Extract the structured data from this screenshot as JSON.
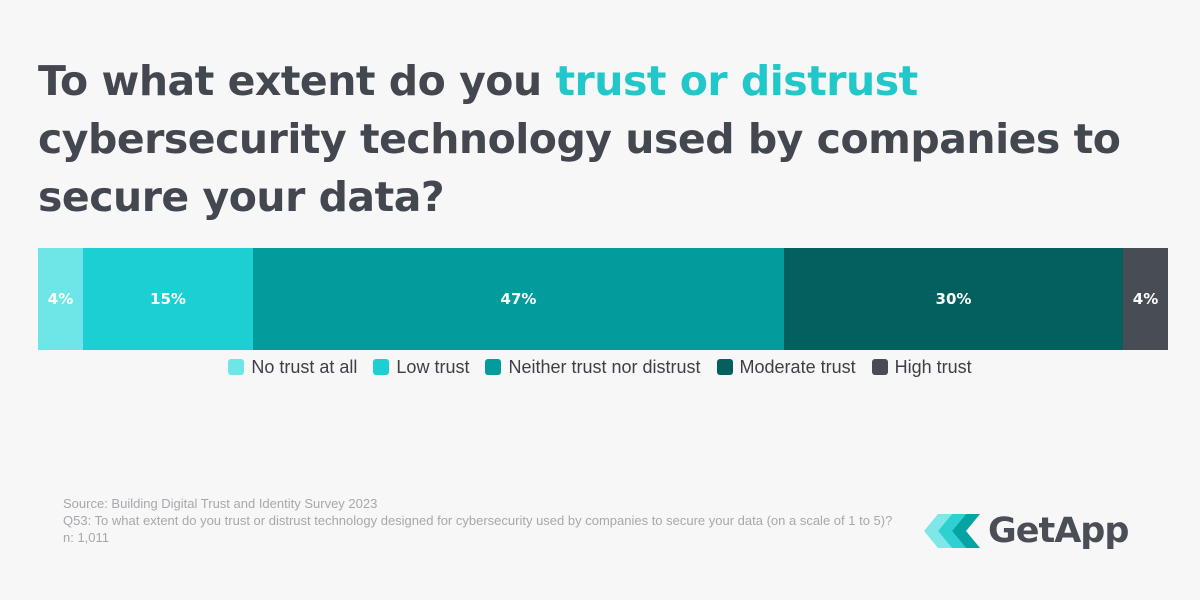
{
  "title": {
    "part1": "To what extent do you ",
    "highlight": "trust or distrust",
    "part2": " cybersecurity technology used by companies to secure your data?"
  },
  "colors": {
    "title": "#434750",
    "highlight": "#22c7c9",
    "background": "#f7f7f7"
  },
  "chart_data": {
    "type": "bar",
    "orientation": "horizontal-stacked",
    "categories": [
      "No trust at all",
      "Low trust",
      "Neither trust nor distrust",
      "Moderate trust",
      "High trust"
    ],
    "values": [
      4,
      15,
      47,
      30,
      4
    ],
    "labels": [
      "4%",
      "15%",
      "47%",
      "30%",
      "4%"
    ],
    "colors": [
      "#6ee6e8",
      "#1ccfd3",
      "#039c9c",
      "#03605e",
      "#484c55"
    ],
    "unit": "%",
    "legend_position": "bottom-center"
  },
  "footnote": {
    "source": "Source: Building Digital Trust and Identity Survey 2023",
    "question": "Q53: To what extent do you trust or distrust technology designed for cybersecurity used by companies to secure your data (on a scale of 1 to 5)?",
    "sample": "n: 1,011"
  },
  "logo": {
    "text": "GetApp",
    "icon": "getapp-chevrons-icon"
  }
}
